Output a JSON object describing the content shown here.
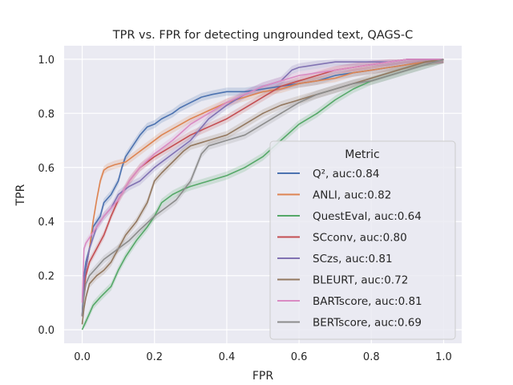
{
  "chart_data": {
    "type": "line",
    "title": "TPR vs. FPR for detecting ungrounded text, QAGS-C",
    "xlabel": "FPR",
    "ylabel": "TPR",
    "xlim": [
      -0.05,
      1.05
    ],
    "ylim": [
      -0.05,
      1.05
    ],
    "xticks": [
      "0.0",
      "0.2",
      "0.4",
      "0.6",
      "0.8",
      "1.0"
    ],
    "yticks": [
      "0.0",
      "0.2",
      "0.4",
      "0.6",
      "0.8",
      "1.0"
    ],
    "grid": true,
    "legend": {
      "title": "Metric",
      "placement": "lower-right"
    },
    "series": [
      {
        "name": "Q²",
        "label": "Q², auc:0.84",
        "color": "#4c72b0",
        "x": [
          0.0,
          0.005,
          0.01,
          0.02,
          0.03,
          0.05,
          0.06,
          0.08,
          0.1,
          0.11,
          0.12,
          0.14,
          0.16,
          0.18,
          0.2,
          0.22,
          0.25,
          0.27,
          0.3,
          0.33,
          0.36,
          0.4,
          0.45,
          0.5,
          0.55,
          0.6,
          0.65,
          0.7,
          0.75,
          0.8,
          0.85,
          0.9,
          0.95,
          1.0
        ],
        "y": [
          0.05,
          0.2,
          0.25,
          0.3,
          0.38,
          0.42,
          0.47,
          0.5,
          0.55,
          0.6,
          0.64,
          0.68,
          0.72,
          0.75,
          0.76,
          0.78,
          0.8,
          0.82,
          0.84,
          0.86,
          0.87,
          0.88,
          0.88,
          0.89,
          0.9,
          0.91,
          0.92,
          0.94,
          0.95,
          0.96,
          0.97,
          0.98,
          0.99,
          1.0
        ]
      },
      {
        "name": "ANLI",
        "label": "ANLI, auc:0.82",
        "color": "#dd8452",
        "x": [
          0.0,
          0.005,
          0.01,
          0.02,
          0.03,
          0.04,
          0.05,
          0.06,
          0.07,
          0.09,
          0.12,
          0.15,
          0.18,
          0.22,
          0.26,
          0.3,
          0.35,
          0.4,
          0.45,
          0.5,
          0.55,
          0.6,
          0.65,
          0.7,
          0.75,
          0.8,
          0.85,
          0.9,
          0.95,
          1.0
        ],
        "y": [
          0.05,
          0.15,
          0.22,
          0.3,
          0.4,
          0.48,
          0.55,
          0.59,
          0.6,
          0.61,
          0.62,
          0.65,
          0.68,
          0.72,
          0.75,
          0.78,
          0.81,
          0.84,
          0.86,
          0.88,
          0.89,
          0.91,
          0.92,
          0.93,
          0.95,
          0.96,
          0.97,
          0.98,
          0.99,
          1.0
        ]
      },
      {
        "name": "QuestEval",
        "label": "QuestEval, auc:0.64",
        "color": "#55a868",
        "x": [
          0.0,
          0.01,
          0.02,
          0.03,
          0.05,
          0.08,
          0.1,
          0.12,
          0.15,
          0.18,
          0.2,
          0.22,
          0.25,
          0.28,
          0.3,
          0.35,
          0.4,
          0.45,
          0.5,
          0.55,
          0.6,
          0.65,
          0.7,
          0.75,
          0.8,
          0.85,
          0.9,
          0.95,
          1.0
        ],
        "y": [
          0.0,
          0.03,
          0.06,
          0.09,
          0.12,
          0.16,
          0.22,
          0.27,
          0.33,
          0.38,
          0.42,
          0.47,
          0.5,
          0.52,
          0.53,
          0.55,
          0.57,
          0.6,
          0.64,
          0.7,
          0.76,
          0.8,
          0.85,
          0.89,
          0.92,
          0.94,
          0.96,
          0.98,
          1.0
        ]
      },
      {
        "name": "SCconv",
        "label": "SCconv, auc:0.80",
        "color": "#c44e52",
        "x": [
          0.0,
          0.005,
          0.01,
          0.02,
          0.04,
          0.06,
          0.08,
          0.1,
          0.13,
          0.16,
          0.2,
          0.25,
          0.3,
          0.35,
          0.4,
          0.45,
          0.5,
          0.55,
          0.6,
          0.65,
          0.7,
          0.75,
          0.8,
          0.85,
          0.9,
          0.95,
          1.0
        ],
        "y": [
          0.05,
          0.15,
          0.2,
          0.25,
          0.3,
          0.35,
          0.42,
          0.48,
          0.55,
          0.6,
          0.64,
          0.68,
          0.72,
          0.75,
          0.78,
          0.82,
          0.86,
          0.9,
          0.92,
          0.94,
          0.96,
          0.97,
          0.98,
          0.99,
          1.0,
          1.0,
          1.0
        ]
      },
      {
        "name": "SCzs",
        "label": "SCzs, auc:0.81",
        "color": "#8172b3",
        "x": [
          0.0,
          0.005,
          0.01,
          0.02,
          0.04,
          0.06,
          0.08,
          0.1,
          0.13,
          0.16,
          0.2,
          0.25,
          0.3,
          0.35,
          0.4,
          0.45,
          0.5,
          0.55,
          0.58,
          0.6,
          0.65,
          0.7,
          0.75,
          0.8,
          0.85,
          0.9,
          0.95,
          1.0
        ],
        "y": [
          0.05,
          0.18,
          0.22,
          0.3,
          0.38,
          0.42,
          0.45,
          0.5,
          0.53,
          0.55,
          0.6,
          0.65,
          0.7,
          0.78,
          0.83,
          0.87,
          0.9,
          0.92,
          0.96,
          0.97,
          0.98,
          0.99,
          0.99,
          0.99,
          0.99,
          1.0,
          1.0,
          1.0
        ]
      },
      {
        "name": "BLEURT",
        "label": "BLEURT, auc:0.72",
        "color": "#937860",
        "x": [
          0.0,
          0.005,
          0.01,
          0.02,
          0.04,
          0.06,
          0.08,
          0.1,
          0.12,
          0.15,
          0.18,
          0.2,
          0.22,
          0.25,
          0.28,
          0.3,
          0.35,
          0.4,
          0.45,
          0.5,
          0.55,
          0.6,
          0.65,
          0.7,
          0.75,
          0.8,
          0.85,
          0.9,
          0.95,
          1.0
        ],
        "y": [
          0.02,
          0.08,
          0.12,
          0.17,
          0.2,
          0.22,
          0.25,
          0.3,
          0.35,
          0.4,
          0.47,
          0.55,
          0.58,
          0.62,
          0.66,
          0.68,
          0.7,
          0.72,
          0.76,
          0.8,
          0.83,
          0.85,
          0.87,
          0.89,
          0.91,
          0.93,
          0.95,
          0.97,
          0.99,
          1.0
        ]
      },
      {
        "name": "BARTscore",
        "label": "BARTscore, auc:0.81",
        "color": "#da8bc3",
        "x": [
          0.0,
          0.005,
          0.01,
          0.02,
          0.04,
          0.06,
          0.08,
          0.1,
          0.13,
          0.16,
          0.2,
          0.25,
          0.3,
          0.35,
          0.4,
          0.45,
          0.5,
          0.55,
          0.6,
          0.65,
          0.7,
          0.75,
          0.8,
          0.85,
          0.9,
          0.95,
          1.0
        ],
        "y": [
          0.1,
          0.3,
          0.32,
          0.34,
          0.38,
          0.42,
          0.45,
          0.48,
          0.55,
          0.6,
          0.65,
          0.7,
          0.76,
          0.8,
          0.84,
          0.87,
          0.9,
          0.92,
          0.94,
          0.95,
          0.96,
          0.97,
          0.98,
          0.99,
          1.0,
          1.0,
          1.0
        ]
      },
      {
        "name": "BERTscore",
        "label": "BERTscore, auc:0.69",
        "color": "#8c8c8c",
        "x": [
          0.0,
          0.005,
          0.01,
          0.02,
          0.04,
          0.06,
          0.08,
          0.1,
          0.13,
          0.16,
          0.2,
          0.23,
          0.26,
          0.3,
          0.33,
          0.35,
          0.4,
          0.45,
          0.5,
          0.55,
          0.6,
          0.65,
          0.7,
          0.75,
          0.8,
          0.85,
          0.9,
          0.95,
          1.0
        ],
        "y": [
          0.05,
          0.12,
          0.17,
          0.2,
          0.23,
          0.26,
          0.28,
          0.3,
          0.33,
          0.37,
          0.42,
          0.45,
          0.48,
          0.55,
          0.65,
          0.68,
          0.7,
          0.72,
          0.76,
          0.8,
          0.84,
          0.87,
          0.89,
          0.91,
          0.92,
          0.94,
          0.96,
          0.98,
          1.0
        ]
      }
    ]
  }
}
